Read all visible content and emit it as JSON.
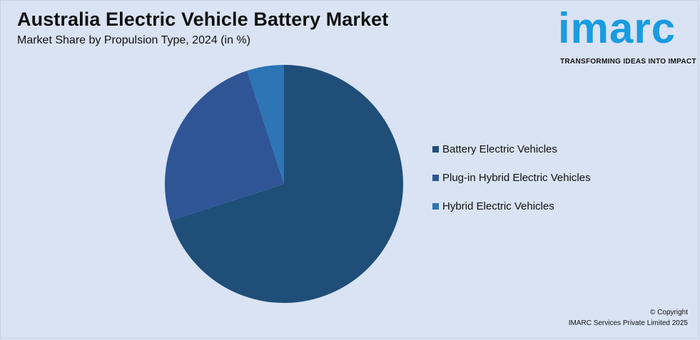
{
  "title": "Australia Electric Vehicle Battery Market",
  "subtitle": "Market Share by Propulsion Type, 2024 (in %)",
  "logo": {
    "word": "imarc",
    "tagline": "TRANSFORMING IDEAS INTO IMPACT"
  },
  "copyright": {
    "line1": "© Copyright",
    "line2": "IMARC Services Private Limited 2025"
  },
  "chart_data": {
    "type": "pie",
    "title": "Australia Electric Vehicle Battery Market",
    "subtitle": "Market Share by Propulsion Type, 2024 (in %)",
    "categories": [
      "Battery Electric Vehicles",
      "Plug-in Hybrid Electric Vehicles",
      "Hybrid Electric Vehicles"
    ],
    "values": [
      70,
      25,
      5
    ],
    "colors": [
      "#1f4e79",
      "#2f5597",
      "#2e75b6"
    ],
    "legend_position": "right"
  }
}
